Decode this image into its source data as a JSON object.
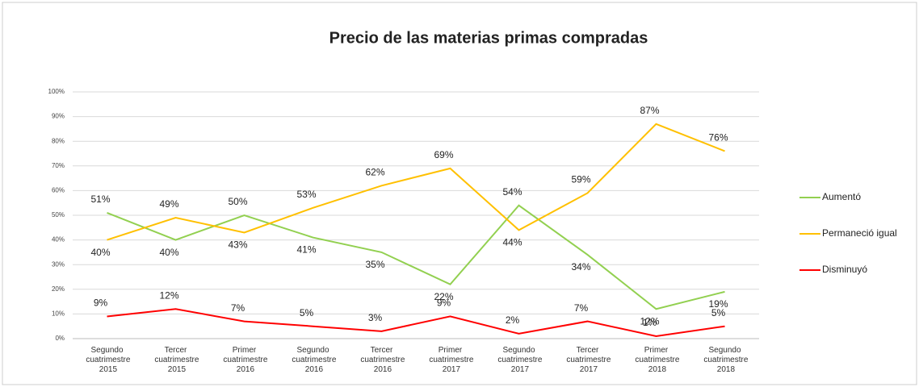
{
  "chart_data": {
    "type": "line",
    "title": "Precio de las materias primas compradas",
    "categories": [
      "Segundo cuatrimestre 2015",
      "Tercer cuatrimestre 2015",
      "Primer cuatrimestre 2016",
      "Segundo cuatrimestre 2016",
      "Tercer cuatrimestre 2016",
      "Primer cuatrimestre 2017",
      "Segundo cuatrimestre 2017",
      "Tercer cuatrimestre 2017",
      "Primer cuatrimestre 2018",
      "Segundo cuatrimestre 2018"
    ],
    "series": [
      {
        "name": "Aumentó",
        "color": "#92d050",
        "values": [
          51,
          40,
          50,
          41,
          35,
          22,
          54,
          34,
          12,
          19
        ],
        "value_labels": [
          "51%",
          "40%",
          "50%",
          "41%",
          "35%",
          "22%",
          "54%",
          "34%",
          "12%",
          "19%"
        ]
      },
      {
        "name": "Permaneció igual",
        "color": "#ffc000",
        "values": [
          40,
          49,
          43,
          53,
          62,
          69,
          44,
          59,
          87,
          76
        ],
        "value_labels": [
          "40%",
          "49%",
          "43%",
          "53%",
          "62%",
          "69%",
          "44%",
          "59%",
          "87%",
          "76%"
        ]
      },
      {
        "name": "Disminuyó",
        "color": "#ff0000",
        "values": [
          9,
          12,
          7,
          5,
          3,
          9,
          2,
          7,
          1,
          5
        ],
        "value_labels": [
          "9%",
          "12%",
          "7%",
          "5%",
          "3%",
          "9%",
          "2%",
          "7%",
          "1%",
          "5%"
        ]
      }
    ],
    "ylim": [
      0,
      100
    ],
    "yticks": [
      {
        "value": 0,
        "label": "0%"
      },
      {
        "value": 10,
        "label": "10%"
      },
      {
        "value": 20,
        "label": "20%"
      },
      {
        "value": 30,
        "label": "30%"
      },
      {
        "value": 40,
        "label": "40%"
      },
      {
        "value": 50,
        "label": "50%"
      },
      {
        "value": 60,
        "label": "60%"
      },
      {
        "value": 70,
        "label": "70%"
      },
      {
        "value": 80,
        "label": "80%"
      },
      {
        "value": 90,
        "label": "90%"
      },
      {
        "value": 100,
        "label": "100%"
      }
    ],
    "grid": true,
    "legend": "right"
  }
}
